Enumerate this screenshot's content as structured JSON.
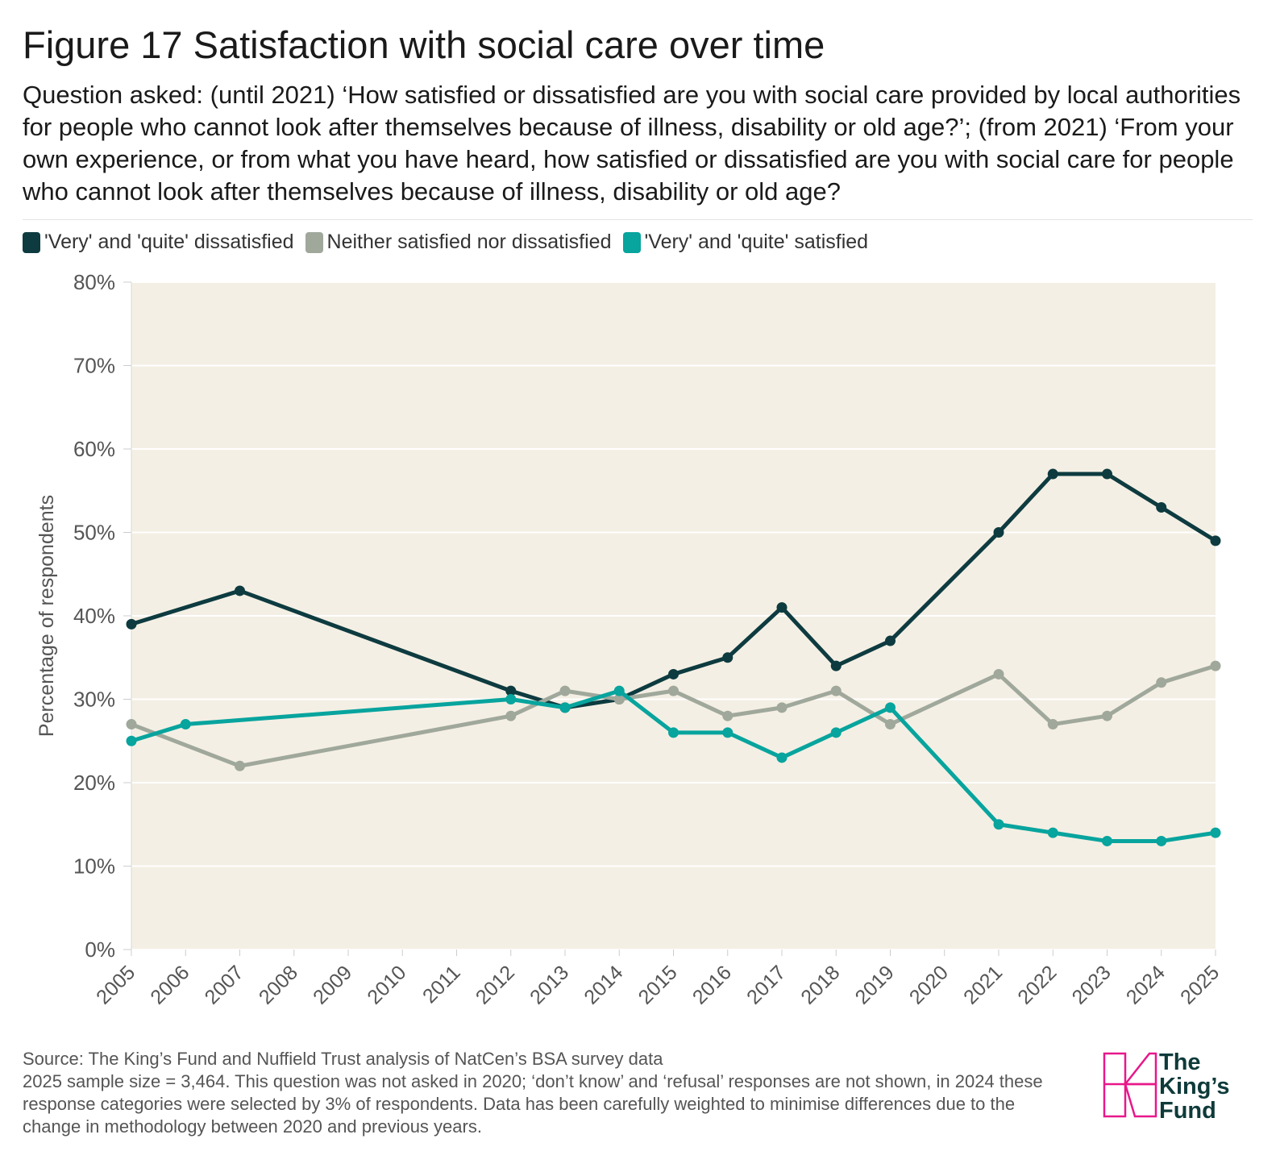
{
  "title": "Figure 17 Satisfaction with social care over time",
  "subtitle": "Question asked: (until 2021) ‘How satisfied or dissatisfied are you with social care provided by local authorities for people who cannot look after themselves because of illness, disability or old age?’; (from 2021) ‘From your own experience, or from what you have heard, how satisfied or dissatisfied are you with social care for people who cannot look after themselves because of illness, disability or old age?",
  "source_line1": "Source: The King’s Fund and Nuffield Trust analysis of NatCen’s BSA survey data",
  "source_line2": "2025 sample size = 3,464. This question was not asked in 2020; ‘don’t know’ and ‘refusal’ responses are not shown, in 2024 these response categories were selected by 3% of respondents. Data has been carefully weighted to minimise differences due to the change in methodology between 2020 and previous years.",
  "logo": {
    "line1": "The",
    "line2": "King’s",
    "line3": "Fund"
  },
  "chart_data": {
    "type": "line",
    "title": "Figure 17 Satisfaction with social care over time",
    "xlabel": "",
    "ylabel": "Percentage of respondents",
    "ylim": [
      0,
      80
    ],
    "yticks": [
      0,
      10,
      20,
      30,
      40,
      50,
      60,
      70,
      80
    ],
    "ytick_labels": [
      "0%",
      "10%",
      "20%",
      "30%",
      "40%",
      "50%",
      "60%",
      "70%",
      "80%"
    ],
    "categories": [
      "2005",
      "2006",
      "2007",
      "2008",
      "2009",
      "2010",
      "2011",
      "2012",
      "2013",
      "2014",
      "2015",
      "2016",
      "2017",
      "2018",
      "2019",
      "2020",
      "2021",
      "2022",
      "2023",
      "2024",
      "2025"
    ],
    "grid": true,
    "legend_position": "top-left",
    "background_color": "#f4efe4",
    "series": [
      {
        "name": "'Very' and 'quite' dissatisfied",
        "color": "#0d3b40",
        "values": [
          39,
          null,
          43,
          null,
          null,
          null,
          null,
          31,
          29,
          30,
          33,
          35,
          41,
          34,
          37,
          null,
          50,
          57,
          57,
          53,
          49
        ]
      },
      {
        "name": "Neither satisfied nor dissatisfied",
        "color": "#a0a89c",
        "values": [
          27,
          null,
          22,
          null,
          null,
          null,
          null,
          28,
          31,
          30,
          31,
          28,
          29,
          31,
          27,
          null,
          33,
          27,
          28,
          32,
          34
        ]
      },
      {
        "name": "'Very' and 'quite' satisfied",
        "color": "#08a49e",
        "values": [
          25,
          27,
          null,
          null,
          null,
          null,
          null,
          30,
          29,
          31,
          26,
          26,
          23,
          26,
          29,
          null,
          15,
          14,
          13,
          13,
          14
        ]
      }
    ]
  }
}
